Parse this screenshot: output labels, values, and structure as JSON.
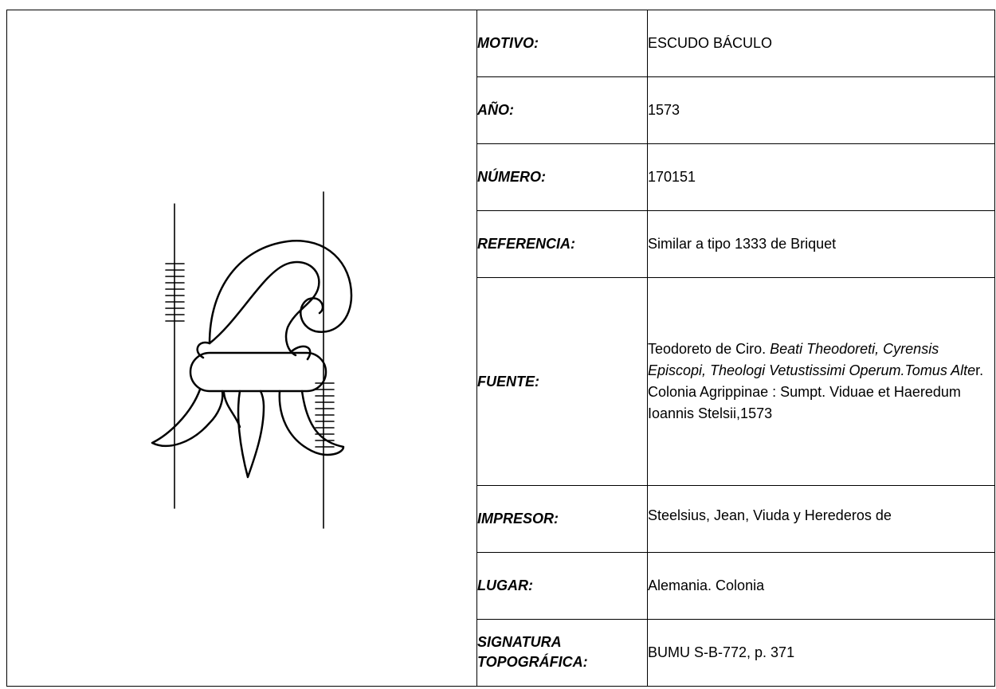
{
  "record": {
    "rows": [
      {
        "label": "MOTIVO:",
        "value": "ESCUDO BÁCULO"
      },
      {
        "label": "AÑO:",
        "value": "1573"
      },
      {
        "label": "NÚMERO:",
        "value": "170151"
      },
      {
        "label": "REFERENCIA:",
        "value": "Similar a tipo 1333 de Briquet"
      },
      {
        "label": "FUENTE:",
        "value": [
          "Teodoreto de Ciro. ",
          "Beati Theodoreti, Cyrensis Episcopi, Theologi Vetustissimi Operum.Tomus Alte",
          "r. Colonia Agrippinae : Sumpt. Viduae et Haeredum Ioannis Stelsii,1573"
        ]
      },
      {
        "label": "IMPRESOR:",
        "value": "Steelsius, Jean, Viuda y Herederos de"
      },
      {
        "label": "LUGAR:",
        "value": "Alemania. Colonia"
      },
      {
        "label": "SIGNATURA TOPOGRÁFICA:",
        "value": "BUMU S-B-772, p. 371"
      }
    ]
  }
}
